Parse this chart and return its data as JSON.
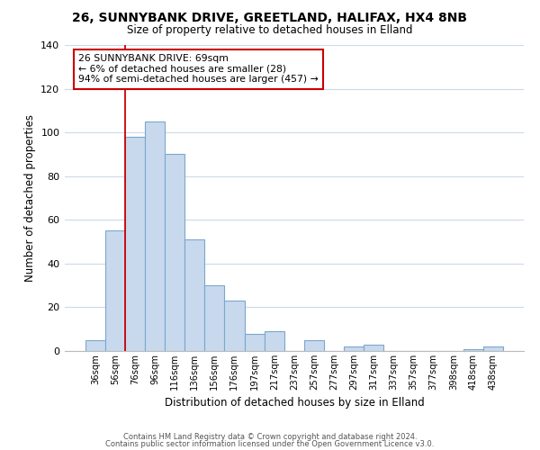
{
  "title": "26, SUNNYBANK DRIVE, GREETLAND, HALIFAX, HX4 8NB",
  "subtitle": "Size of property relative to detached houses in Elland",
  "xlabel": "Distribution of detached houses by size in Elland",
  "ylabel": "Number of detached properties",
  "bar_color": "#c8d9ee",
  "bar_edgecolor": "#7aa7cc",
  "background_color": "#ffffff",
  "grid_color": "#ccd9e8",
  "ylim": [
    0,
    140
  ],
  "yticks": [
    0,
    20,
    40,
    60,
    80,
    100,
    120,
    140
  ],
  "categories": [
    "36sqm",
    "56sqm",
    "76sqm",
    "96sqm",
    "116sqm",
    "136sqm",
    "156sqm",
    "176sqm",
    "197sqm",
    "217sqm",
    "237sqm",
    "257sqm",
    "277sqm",
    "297sqm",
    "317sqm",
    "337sqm",
    "357sqm",
    "377sqm",
    "398sqm",
    "418sqm",
    "438sqm"
  ],
  "values": [
    5,
    55,
    98,
    105,
    90,
    51,
    30,
    23,
    8,
    9,
    0,
    5,
    0,
    2,
    3,
    0,
    0,
    0,
    0,
    1,
    2
  ],
  "annotation_title": "26 SUNNYBANK DRIVE: 69sqm",
  "annotation_line1": "← 6% of detached houses are smaller (28)",
  "annotation_line2": "94% of semi-detached houses are larger (457) →",
  "red_line_label": "76sqm",
  "footer1": "Contains HM Land Registry data © Crown copyright and database right 2024.",
  "footer2": "Contains public sector information licensed under the Open Government Licence v3.0."
}
